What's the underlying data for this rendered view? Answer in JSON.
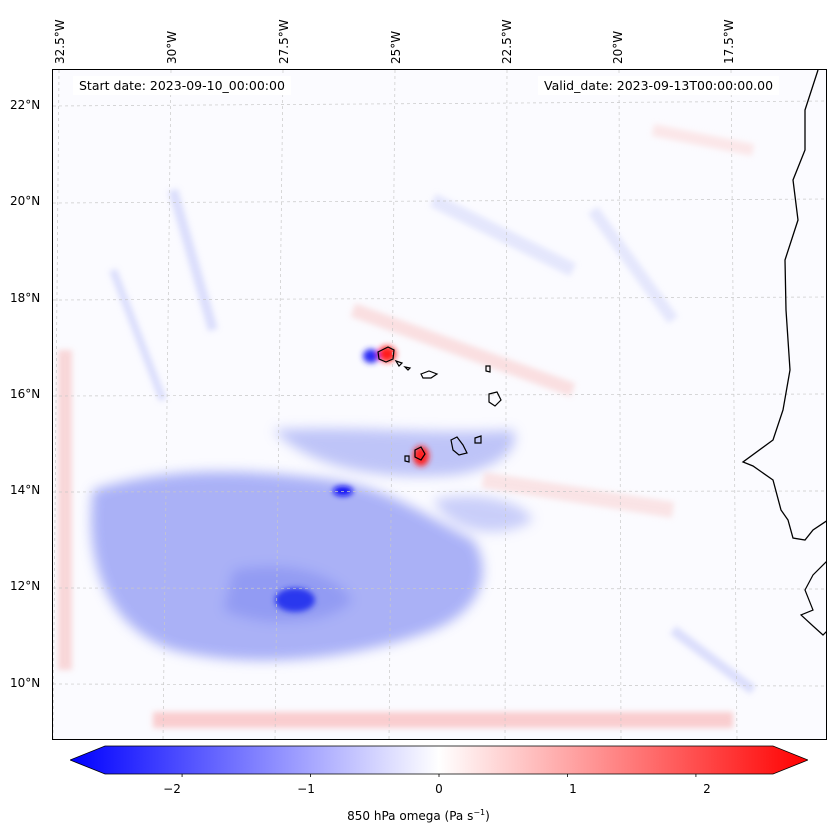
{
  "header": {
    "start_date": "Start date: 2023-09-10_00:00:00",
    "valid_date": "Valid_date: 2023-09-13T00:00:00.00"
  },
  "map": {
    "lat_labels": [
      "22°N",
      "20°N",
      "18°N",
      "16°N",
      "14°N",
      "12°N",
      "10°N"
    ],
    "lon_labels": [
      "32.5°W",
      "30°W",
      "27.5°W",
      "25°W",
      "22.5°W",
      "20°W",
      "17.5°W"
    ],
    "field": "850 hPa omega",
    "gridlines": true,
    "coastline_color": "#000000"
  },
  "colorbar": {
    "label": "850 hPa omega (Pa s",
    "label_sup": "−1",
    "label_end": ")",
    "ticks": [
      "−2",
      "−1",
      "0",
      "1",
      "2"
    ],
    "min": -2.6,
    "max": 2.6,
    "extend": "both",
    "color_low": "#0000ff",
    "color_mid": "#ffffff",
    "color_high": "#ff0000"
  }
}
